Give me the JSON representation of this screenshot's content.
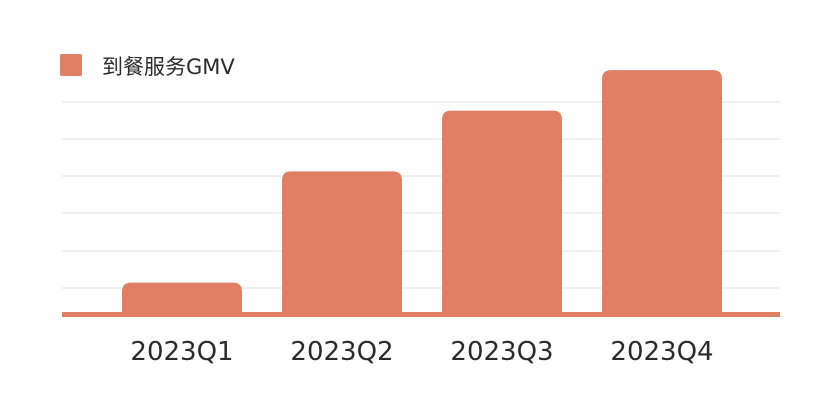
{
  "colors": {
    "bar": "#E07F64",
    "axis": "#E07F64",
    "grid": "#E2E2E2",
    "text": "#2B2B2B"
  },
  "chart_data": {
    "type": "bar",
    "title": "",
    "xlabel": "",
    "ylabel": "",
    "categories": [
      "2023Q1",
      "2023Q2",
      "2023Q3",
      "2023Q4"
    ],
    "series": [
      {
        "name": "到餐服务GMV",
        "values": [
          15,
          70,
          100,
          120
        ]
      }
    ],
    "ylim": [
      0,
      125
    ],
    "grid": true,
    "legend_position": "top-left"
  }
}
